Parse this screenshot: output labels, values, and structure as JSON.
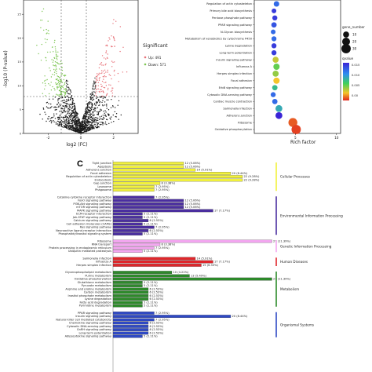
{
  "chart_data": [
    {
      "type": "scatter",
      "xlabel": "log2 (FC)",
      "ylabel": "-log10 (P-value)",
      "x_ticks": [
        "-2",
        "0",
        "2"
      ],
      "y_ticks": [
        "0",
        "5",
        "10",
        "15",
        "20",
        "25"
      ],
      "legend_title": "Significant",
      "legend_items": [
        {
          "label": "Up: 491",
          "color": "#e8737a"
        },
        {
          "label": "Down: 571",
          "color": "#7dc653"
        }
      ],
      "grid": false
    },
    {
      "type": "scatter",
      "xlabel": "Rich factor",
      "x_ticks": [
        "5",
        "10"
      ],
      "xlim": [
        0,
        10.5
      ],
      "categories": [
        "Regulation of actin cytoskeleton",
        "Primary bile acid biosynthesis",
        "Pentose phosphate pathway",
        "PPAR signaling pathway",
        "N-Glycan biosynthesis",
        "Metabolism of xenobiotics by cytochrome P450",
        "Lysine degradation",
        "Long-term potentiation",
        "Insulin signaling pathway",
        "Influenza A",
        "Herpes simplex infection",
        "Focal adhesion",
        "ErbB signaling pathway",
        "Cytosolic DNA-sensing pathway",
        "Cardiac muscle contraction",
        "Salmonella infection",
        "Adherens junction",
        "Ribosome",
        "Oxidative phosphorylation"
      ],
      "rich_factor": [
        2.7,
        2.4,
        2.5,
        2.4,
        2.3,
        2.4,
        2.4,
        2.4,
        2.6,
        2.7,
        2.6,
        2.7,
        2.5,
        2.3,
        2.5,
        3.0,
        3.0,
        4.7,
        5.1
      ],
      "gene_number": [
        8,
        5,
        6,
        7,
        5,
        6,
        6,
        6,
        10,
        11,
        10,
        11,
        7,
        6,
        7,
        14,
        14,
        27,
        30
      ],
      "qvalue": [
        0.012,
        0.014,
        0.014,
        0.013,
        0.012,
        0.012,
        0.014,
        0.014,
        0.004,
        0.006,
        0.005,
        0.003,
        0.008,
        0.012,
        0.012,
        0.009,
        0.015,
        0.001,
        0.0005
      ],
      "size_legend_title": "gene_number",
      "size_legend": [
        "10",
        "20",
        "30"
      ],
      "color_legend_title": "qvalue",
      "color_legend_ticks": [
        "0.015",
        "0.010",
        "0.005",
        "0.00"
      ],
      "grid": false
    },
    {
      "type": "bar",
      "panel_label": "C",
      "groups": [
        {
          "name": "Cellular Processes",
          "color": "#f2f23c",
          "categories": [
            "Tight junction",
            "Apoptosis",
            "Adherens junction",
            "Focal adhesion",
            "Regulation of actin cytoskeleton",
            "Endocytosis",
            "Gap junction",
            "Lysosome",
            "Phagosome"
          ],
          "values": [
            12,
            12,
            14,
            20,
            22,
            22,
            8,
            7,
            7
          ],
          "labels": [
            "12 (5.06%)",
            "12 (5.06%)",
            "14 (5.91%)",
            "20 (8.44%)",
            "22 (9.28%)",
            "22 (9.28%)",
            "8 (3.38%)",
            "7 (2.95%)",
            "7 (2.95%)"
          ]
        },
        {
          "name": "Environmental Information Processing",
          "color": "#4b2fa0",
          "categories": [
            "Cytokine-cytokine receptor interaction",
            "FoxO signaling pathway",
            "PI3K-Akt signaling pathway",
            "mTOR signaling pathway",
            "MAPK signaling pathway",
            "ECM-receptor interaction",
            "Jak-STAT signaling pathway",
            "Calcium signaling pathway",
            "Cell adhesion molecules (CAMs)",
            "Ras signaling pathway",
            "Neuroactive ligand-receptor interaction",
            "Phosphatidylinositol signaling system"
          ],
          "values": [
            7,
            12,
            12,
            12,
            17,
            5,
            5,
            6,
            5,
            7,
            6,
            5
          ],
          "labels": [
            "7 (2.95%)",
            "12 (5.06%)",
            "12 (5.06%)",
            "12 (5.06%)",
            "17 (7.17%)",
            "5 (2.11%)",
            "5 (2.11%)",
            "6 (2.53%)",
            "5 (2.11%)",
            "7 (2.95%)",
            "6 (2.53%)",
            "5 (2.11%)"
          ]
        },
        {
          "name": "Genetic Information Processing",
          "color": "#f3a6f0",
          "categories": [
            "Ribosome",
            "RNA transport",
            "Protein processing in endoplasmic reticulum",
            "Ubiquitin mediated proteolysis"
          ],
          "values": [
            27,
            8,
            7,
            5
          ],
          "labels": [
            "27 (11.39%)",
            "8 (3.38%)",
            "7 (2.95%)",
            "5 (2.11%)"
          ]
        },
        {
          "name": "Human Diseases",
          "color": "#e0262b",
          "categories": [
            "Salmonella infection",
            "Influenza A",
            "Herpes simplex infection"
          ],
          "values": [
            14,
            17,
            15
          ],
          "labels": [
            "14 (5.91%)",
            "17 (7.17%)",
            "15 (6.33%)"
          ]
        },
        {
          "name": "Metabolism",
          "color": "#2d8a2a",
          "categories": [
            "Glycerophospholipid metabolism",
            "Purine metabolism",
            "Oxidative phosphorylation",
            "Glutathione metabolism",
            "Pyruvate metabolism",
            "Arginine and proline metabolism",
            "Carbon metabolism",
            "Inositol phosphate metabolism",
            "Lysine degradation",
            "Fatty acid degradation",
            "Pyrimidine metabolism"
          ],
          "values": [
            10,
            13,
            27,
            5,
            5,
            6,
            6,
            6,
            6,
            5,
            5
          ],
          "labels": [
            "10 (4.22%)",
            "13 (5.49%)",
            "27 (11.39%)",
            "5 (2.11%)",
            "5 (2.11%)",
            "6 (2.53%)",
            "6 (2.53%)",
            "6 (2.53%)",
            "6 (2.53%)",
            "5 (2.11%)",
            "5 (2.11%)"
          ]
        },
        {
          "name": "Organismal Systems",
          "color": "#2f49c5",
          "categories": [
            "PPAR signaling pathway",
            "Insulin signaling pathway",
            "Natural killer cell mediated cytotoxicity",
            "Chemokine signaling pathway",
            "Cytosolic DNA-sensing pathway",
            "GnRH signaling pathway",
            "Long-term potentiation",
            "Adipocytokine signaling pathway"
          ],
          "values": [
            7,
            20,
            7,
            6,
            6,
            6,
            6,
            5
          ],
          "labels": [
            "7 (2.95%)",
            "20 (8.44%)",
            "7 (2.95%)",
            "6 (2.53%)",
            "6 (2.53%)",
            "6 (2.53%)",
            "6 (2.53%)",
            "5 (2.11%)"
          ]
        }
      ]
    }
  ]
}
